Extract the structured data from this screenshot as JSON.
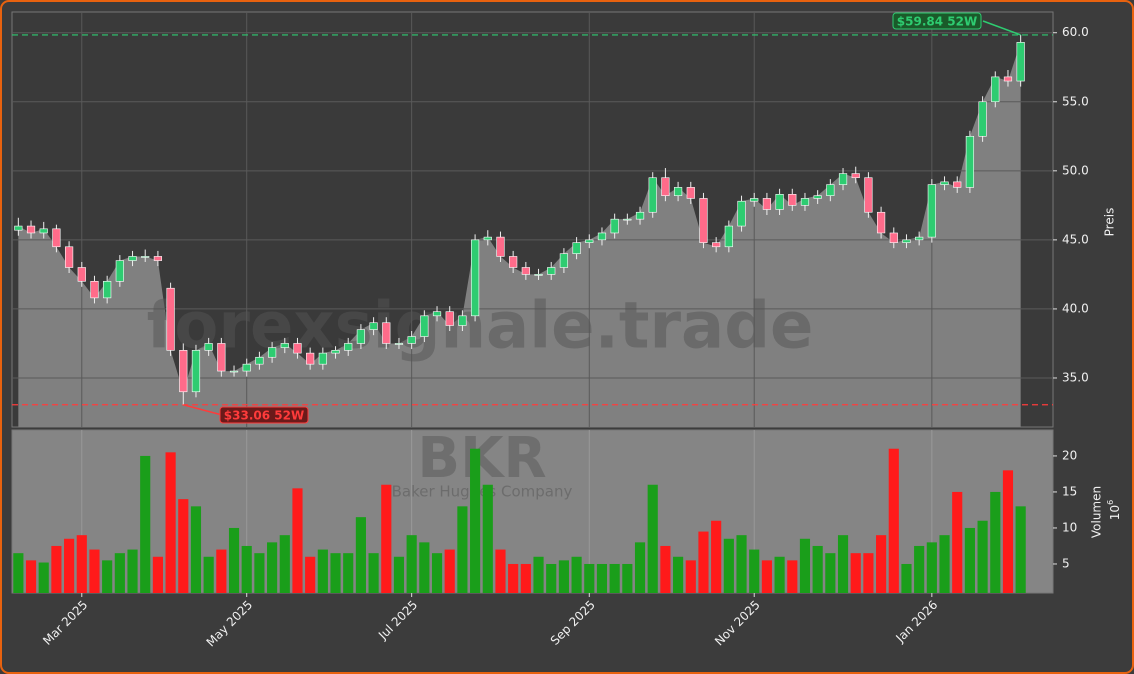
{
  "chart_data": {
    "type": "candlestick",
    "watermark": "forexsignale.trade",
    "ticker": "BKR",
    "company": "Baker Hughes Company",
    "ylabel": "Preis",
    "y2label": "Volumen",
    "y2unit": "10",
    "y2unit_exp": "6",
    "up_color": "#2ecc71",
    "down_color": "#ff6b8a",
    "volume_up_color": "#1a9e1a",
    "volume_down_color": "#ff1a1a",
    "area_color": "#808080",
    "grid": true,
    "categories": [
      null,
      null,
      null,
      null,
      null,
      "Mar 2025",
      null,
      null,
      null,
      null,
      null,
      null,
      null,
      null,
      null,
      null,
      null,
      null,
      "May 2025",
      null,
      null,
      null,
      null,
      null,
      null,
      null,
      null,
      null,
      null,
      null,
      null,
      "Jul 2025",
      null,
      null,
      null,
      null,
      null,
      null,
      null,
      null,
      null,
      null,
      null,
      null,
      null,
      "Sep 2025",
      null,
      null,
      null,
      null,
      null,
      null,
      null,
      null,
      null,
      null,
      null,
      null,
      "Nov 2025",
      null,
      null,
      null,
      null,
      null,
      null,
      null,
      null,
      null,
      null,
      null,
      null,
      null,
      "Jan 2026",
      null,
      null,
      null,
      null,
      null,
      null,
      null
    ],
    "open": [
      45.7,
      46.0,
      45.5,
      45.8,
      44.5,
      43.0,
      42.0,
      40.8,
      42.0,
      43.5,
      43.8,
      43.8,
      41.5,
      37.0,
      34.0,
      37.0,
      37.5,
      35.5,
      35.5,
      36.0,
      36.5,
      37.2,
      37.5,
      36.8,
      36.0,
      36.8,
      37.0,
      37.5,
      38.5,
      39.0,
      37.5,
      37.5,
      38.0,
      39.5,
      39.8,
      38.8,
      39.5,
      45.0,
      45.2,
      43.8,
      43.0,
      42.5,
      42.5,
      43.0,
      44.0,
      44.8,
      45.0,
      45.5,
      46.5,
      46.5,
      47.0,
      49.5,
      48.2,
      48.8,
      48.0,
      44.8,
      44.5,
      46.0,
      47.8,
      48.0,
      47.2,
      48.3,
      47.5,
      48.0,
      48.2,
      49.0,
      49.8,
      49.5,
      47.0,
      45.5,
      44.8,
      45.0,
      45.2,
      49.0,
      49.2,
      48.8,
      52.5,
      55.0,
      56.8,
      56.5
    ],
    "high": [
      46.6,
      46.4,
      46.3,
      46.1,
      44.9,
      43.4,
      42.4,
      42.4,
      43.9,
      44.2,
      44.3,
      44.2,
      41.9,
      37.5,
      37.4,
      37.9,
      37.9,
      35.9,
      36.4,
      36.9,
      37.6,
      37.9,
      37.9,
      37.2,
      37.2,
      37.3,
      37.9,
      38.9,
      39.4,
      39.4,
      37.9,
      38.4,
      39.9,
      40.2,
      40.2,
      39.9,
      45.4,
      45.7,
      45.6,
      44.2,
      43.4,
      42.9,
      43.4,
      44.4,
      45.2,
      45.4,
      45.9,
      46.9,
      46.9,
      47.4,
      49.9,
      50.2,
      49.2,
      49.2,
      48.4,
      45.2,
      46.4,
      48.2,
      48.4,
      48.4,
      48.7,
      48.7,
      48.4,
      48.6,
      49.4,
      50.2,
      50.3,
      49.9,
      47.4,
      45.9,
      45.4,
      45.6,
      49.4,
      49.6,
      49.6,
      52.9,
      55.4,
      57.2,
      57.3,
      59.84
    ],
    "low": [
      45.3,
      45.1,
      45.1,
      44.1,
      42.6,
      41.6,
      40.4,
      40.4,
      41.6,
      43.1,
      43.4,
      43.1,
      36.6,
      33.06,
      33.6,
      36.6,
      35.1,
      35.1,
      35.1,
      35.6,
      36.1,
      36.8,
      36.4,
      35.6,
      35.6,
      36.4,
      36.6,
      37.1,
      38.1,
      37.1,
      37.1,
      37.1,
      37.6,
      39.1,
      38.4,
      38.4,
      39.1,
      44.6,
      43.4,
      42.6,
      42.1,
      42.1,
      42.1,
      42.6,
      43.6,
      44.4,
      44.6,
      45.1,
      46.1,
      46.1,
      46.6,
      47.8,
      47.8,
      47.6,
      44.4,
      44.1,
      44.1,
      45.6,
      47.4,
      46.8,
      46.8,
      47.1,
      47.1,
      47.6,
      47.8,
      48.6,
      49.1,
      46.6,
      45.1,
      44.4,
      44.4,
      44.6,
      44.8,
      48.6,
      48.4,
      48.4,
      52.1,
      54.6,
      56.1,
      56.1
    ],
    "close": [
      46.0,
      45.5,
      45.8,
      44.5,
      43.0,
      42.0,
      40.8,
      42.0,
      43.5,
      43.8,
      43.8,
      43.5,
      37.0,
      34.0,
      37.0,
      37.5,
      35.5,
      35.5,
      36.0,
      36.5,
      37.2,
      37.5,
      36.8,
      36.0,
      36.8,
      37.0,
      37.5,
      38.5,
      39.0,
      37.5,
      37.5,
      38.0,
      39.5,
      39.8,
      38.8,
      39.5,
      45.0,
      45.2,
      43.8,
      43.0,
      42.5,
      42.5,
      43.0,
      44.0,
      44.8,
      45.0,
      45.5,
      46.5,
      46.5,
      47.0,
      49.5,
      48.2,
      48.8,
      48.0,
      44.8,
      44.5,
      46.0,
      47.8,
      48.0,
      47.2,
      48.3,
      47.5,
      48.0,
      48.2,
      49.0,
      49.8,
      49.5,
      47.0,
      45.5,
      44.8,
      45.0,
      45.2,
      49.0,
      49.2,
      48.8,
      52.5,
      55.0,
      56.8,
      56.5,
      59.3
    ],
    "volume": [
      6.5,
      5.5,
      5.2,
      7.5,
      8.5,
      9.0,
      7.0,
      5.5,
      6.5,
      7.0,
      20.0,
      6.0,
      20.5,
      14.0,
      13.0,
      6.0,
      7.0,
      10.0,
      7.5,
      6.5,
      8.0,
      9.0,
      15.5,
      6.0,
      7.0,
      6.5,
      6.5,
      11.5,
      6.5,
      16.0,
      6.0,
      9.0,
      8.0,
      6.5,
      7.0,
      13.0,
      21.0,
      16.0,
      7.0,
      5.0,
      5.0,
      6.0,
      5.0,
      5.5,
      6.0,
      5.0,
      5.0,
      5.0,
      5.0,
      8.0,
      16.0,
      7.5,
      6.0,
      5.5,
      9.5,
      11.0,
      8.5,
      9.0,
      7.0,
      5.5,
      6.0,
      5.5,
      8.5,
      7.5,
      6.5,
      9.0,
      6.5,
      6.5,
      9.0,
      21.0,
      5.0,
      7.5,
      8.0,
      9.0,
      15.0,
      10.0,
      11.0,
      15.0,
      18.0,
      13.0
    ],
    "ylim": [
      31.45,
      61.5
    ],
    "yticks": [
      {
        "value": 35,
        "label": "35.0"
      },
      {
        "value": 40,
        "label": "40.0"
      },
      {
        "value": 45,
        "label": "45.0"
      },
      {
        "value": 50,
        "label": "50.0"
      },
      {
        "value": 55,
        "label": "55.0"
      },
      {
        "value": 60,
        "label": "60.0"
      }
    ],
    "y2lim": [
      0.97,
      23.6
    ],
    "y2ticks": [
      5,
      10,
      15,
      20
    ],
    "annotations": [
      {
        "text": "$59.84 52W",
        "value": 59.84,
        "color": "#2ecc71"
      },
      {
        "text": "$33.06 52W",
        "value": 33.06,
        "color": "#ff3b3b"
      }
    ]
  }
}
